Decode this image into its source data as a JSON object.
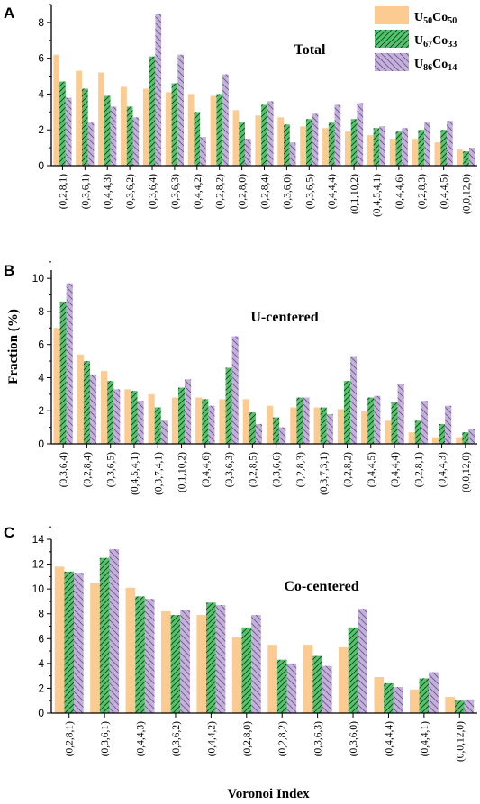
{
  "colors": {
    "u50": "#fbcb92",
    "u67": "#52c46a",
    "u86": "#c5b0dc"
  },
  "legend": [
    {
      "base1": "U",
      "sub1": "50",
      "base2": "Co",
      "sub2": "50",
      "pattern": "solid"
    },
    {
      "base1": "U",
      "sub1": "67",
      "base2": "Co",
      "sub2": "33",
      "pattern": "hatch-diag"
    },
    {
      "base1": "U",
      "sub1": "86",
      "base2": "Co",
      "sub2": "14",
      "pattern": "hatch-back"
    }
  ],
  "ylabel": "Fraction (%)",
  "xlabel": "Voronoi Index",
  "chart_data": [
    {
      "type": "bar",
      "panel": "A",
      "title": "Total",
      "ylim": [
        0,
        9
      ],
      "yticks": [
        0,
        2,
        4,
        6,
        8
      ],
      "categories": [
        "(0,2,8,1)",
        "(0,3,6,1)",
        "(0,4,4,3)",
        "(0,3,6,2)",
        "(0,3,6,4)",
        "(0,3,6,3)",
        "(0,4,4,2)",
        "(0,2,8,2)",
        "(0,2,8,0)",
        "(0,2,8,4)",
        "(0,3,6,0)",
        "(0,3,6,5)",
        "(0,4,4,4)",
        "(0,1,10,2)",
        "(0,4,5,4,1)",
        "(0,4,4,6)",
        "(0,2,8,3)",
        "(0,4,4,5)",
        "(0,0,12,0)"
      ],
      "series": [
        {
          "name": "U50Co50",
          "values": [
            6.2,
            5.3,
            5.2,
            4.4,
            4.3,
            4.1,
            4.0,
            3.9,
            3.1,
            2.8,
            2.7,
            2.2,
            2.1,
            1.9,
            1.7,
            1.5,
            1.5,
            1.3,
            0.9
          ]
        },
        {
          "name": "U67Co33",
          "values": [
            4.7,
            4.3,
            3.9,
            3.3,
            6.1,
            4.6,
            3.0,
            4.0,
            2.4,
            3.4,
            2.3,
            2.6,
            2.4,
            2.6,
            2.1,
            1.9,
            2.0,
            2.0,
            0.8
          ]
        },
        {
          "name": "U86Co14",
          "values": [
            3.8,
            2.4,
            3.3,
            2.7,
            8.5,
            6.2,
            1.6,
            5.1,
            1.5,
            3.6,
            1.3,
            2.9,
            3.4,
            3.5,
            2.2,
            2.1,
            2.4,
            2.5,
            1.0
          ]
        }
      ]
    },
    {
      "type": "bar",
      "panel": "B",
      "title": "U-centered",
      "ylim": [
        0,
        10.5
      ],
      "yticks": [
        0,
        2,
        4,
        6,
        8,
        10
      ],
      "categories": [
        "(0,3,6,4)",
        "(0,2,8,4)",
        "(0,3,6,5)",
        "(0,4,5,4,1)",
        "(0,3,7,4,1)",
        "(0,1,10,2)",
        "(0,4,4,6)",
        "(0,3,6,3)",
        "(0,2,8,5)",
        "(0,3,6,6)",
        "(0,2,8,3)",
        "(0,3,7,3,1)",
        "(0,2,8,2)",
        "(0,4,4,5)",
        "(0,4,4,4)",
        "(0,2,8,1)",
        "(0,4,4,3)",
        "(0,0,12,0)"
      ],
      "series": [
        {
          "name": "U50Co50",
          "values": [
            7.0,
            5.4,
            4.4,
            3.3,
            3.0,
            2.8,
            2.8,
            2.7,
            2.7,
            2.3,
            2.2,
            2.2,
            2.1,
            2.0,
            1.4,
            0.7,
            0.4,
            0.4
          ]
        },
        {
          "name": "U67Co33",
          "values": [
            8.6,
            5.0,
            3.8,
            3.2,
            2.2,
            3.4,
            2.7,
            4.6,
            1.9,
            1.6,
            2.8,
            2.2,
            3.8,
            2.8,
            2.5,
            1.4,
            1.2,
            0.7
          ]
        },
        {
          "name": "U86Co14",
          "values": [
            9.7,
            4.2,
            3.3,
            2.6,
            1.4,
            3.9,
            2.3,
            6.5,
            1.2,
            1.0,
            2.8,
            1.8,
            5.3,
            2.9,
            3.6,
            2.6,
            2.3,
            0.9
          ]
        }
      ]
    },
    {
      "type": "bar",
      "panel": "C",
      "title": "Co-centered",
      "ylim": [
        0,
        14
      ],
      "yticks": [
        0,
        2,
        4,
        6,
        8,
        10,
        12,
        14
      ],
      "categories": [
        "(0,2,8,1)",
        "(0,3,6,1)",
        "(0,4,4,3)",
        "(0,3,6,2)",
        "(0,4,4,2)",
        "(0,2,8,0)",
        "(0,2,8,2)",
        "(0,3,6,3)",
        "(0,3,6,0)",
        "(0,4,4,4)",
        "(0,4,4,1)",
        "(0,0,12,0)"
      ],
      "series": [
        {
          "name": "U50Co50",
          "values": [
            11.8,
            10.5,
            10.1,
            8.2,
            7.9,
            6.1,
            5.5,
            5.5,
            5.3,
            2.9,
            1.9,
            1.3
          ]
        },
        {
          "name": "U67Co33",
          "values": [
            11.4,
            12.5,
            9.4,
            7.9,
            8.9,
            6.9,
            4.3,
            4.6,
            6.9,
            2.4,
            2.8,
            1.0
          ]
        },
        {
          "name": "U86Co14",
          "values": [
            11.3,
            13.2,
            9.2,
            8.3,
            8.7,
            7.9,
            4.0,
            3.8,
            8.4,
            2.1,
            3.3,
            1.1
          ]
        }
      ]
    }
  ]
}
